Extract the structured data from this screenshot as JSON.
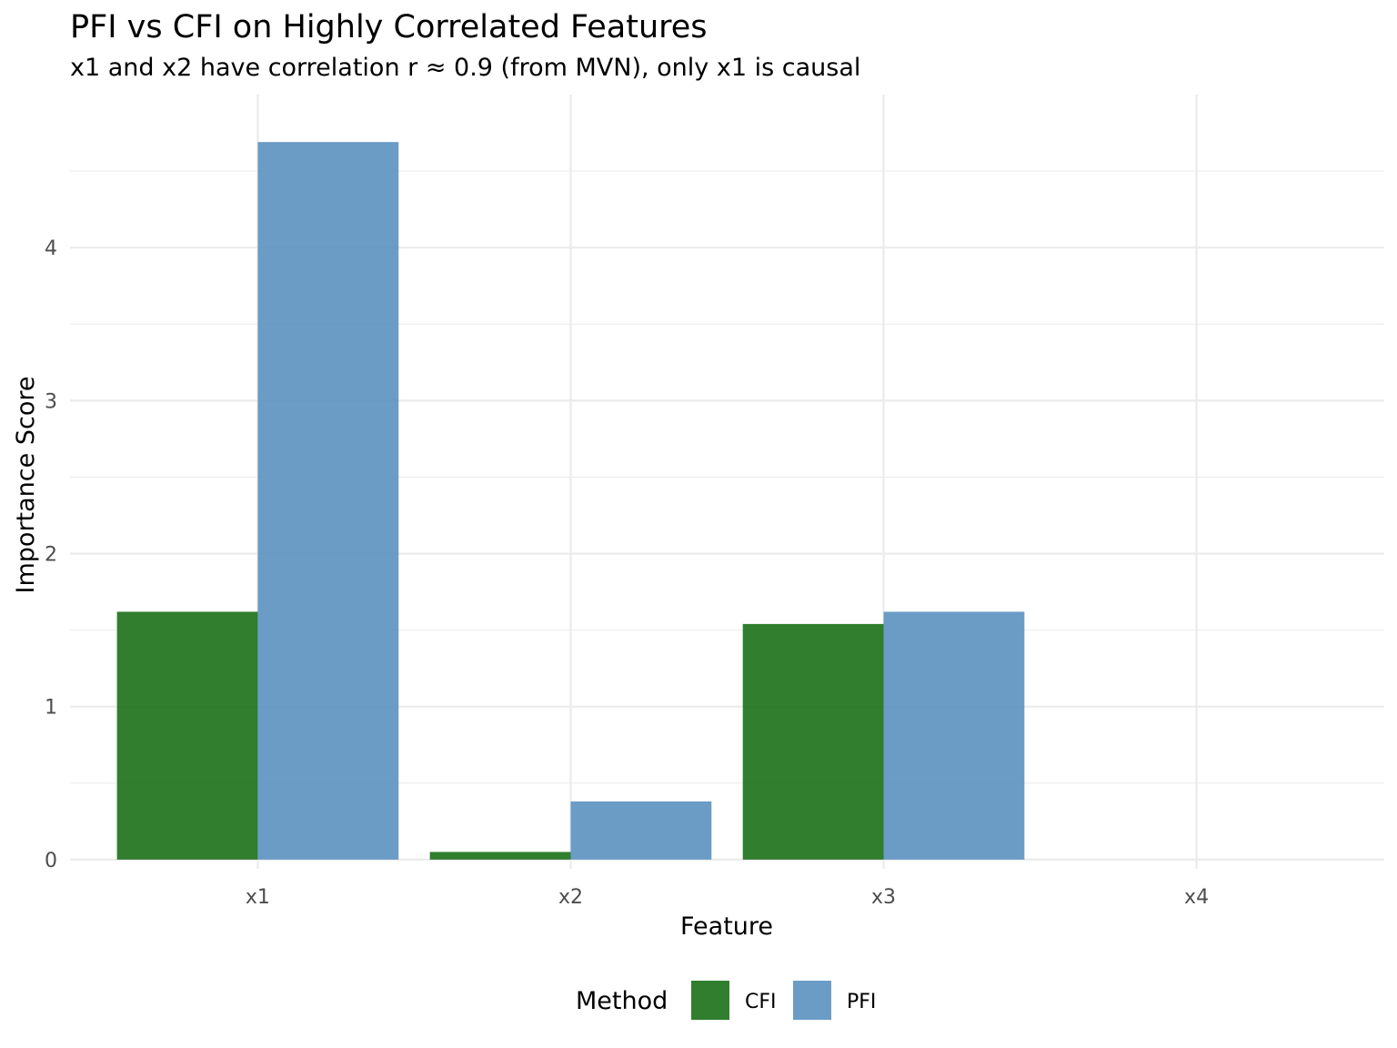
{
  "chart_data": {
    "type": "bar",
    "title": "PFI vs CFI on Highly Correlated Features",
    "subtitle": "x1 and x2 have correlation r ≈ 0.9 (from MVN), only x1 is causal",
    "xlabel": "Feature",
    "ylabel": "Importance Score",
    "categories": [
      "x1",
      "x2",
      "x3",
      "x4"
    ],
    "series": [
      {
        "name": "CFI",
        "color": "#1a7017",
        "values": [
          1.62,
          0.05,
          1.54,
          0.0
        ]
      },
      {
        "name": "PFI",
        "color": "#5b91c0",
        "values": [
          4.69,
          0.38,
          1.62,
          0.0
        ]
      }
    ],
    "ylim": [
      -0.06,
      5.0
    ],
    "y_ticks": [
      0,
      1,
      2,
      3,
      4
    ],
    "y_tick_labels": [
      "0",
      "1",
      "2",
      "3",
      "4"
    ],
    "grid": true,
    "legend": {
      "title": "Method",
      "position": "bottom"
    }
  }
}
